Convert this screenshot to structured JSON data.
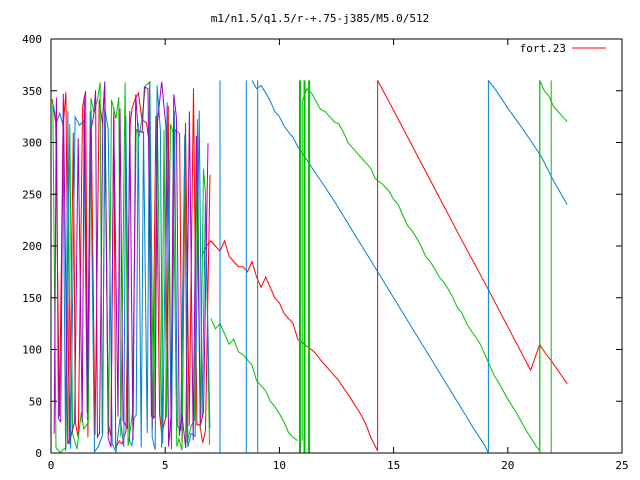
{
  "chart_data": {
    "type": "line",
    "title": "m1/n1.5/q1.5/r-+.75-j385/M5.0/512",
    "xlabel": "",
    "ylabel": "",
    "xlim": [
      0,
      25
    ],
    "ylim": [
      0,
      400
    ],
    "x_ticks": [
      "0",
      "5",
      "10",
      "15",
      "20",
      "25"
    ],
    "y_ticks": [
      "0",
      "50",
      "100",
      "150",
      "200",
      "250",
      "300",
      "350",
      "400"
    ],
    "grid": false,
    "legend": {
      "placement": "top-right",
      "entries": [
        {
          "label": "fort.23",
          "color": "#ff0000"
        }
      ]
    },
    "series": [
      {
        "name": "fort.23",
        "color": "#ff0000",
        "points": [
          [
            6.6,
            190
          ],
          [
            6.8,
            200
          ],
          [
            7.0,
            205
          ],
          [
            7.2,
            200
          ],
          [
            7.4,
            195
          ],
          [
            7.6,
            205
          ],
          [
            7.8,
            190
          ],
          [
            8.0,
            185
          ],
          [
            8.2,
            180
          ],
          [
            8.4,
            180
          ],
          [
            8.6,
            175
          ],
          [
            8.8,
            185
          ],
          [
            9.0,
            170
          ],
          [
            9.2,
            160
          ],
          [
            9.4,
            170
          ],
          [
            9.6,
            160
          ],
          [
            9.8,
            150
          ],
          [
            10.0,
            145
          ],
          [
            10.2,
            135
          ],
          [
            10.4,
            130
          ],
          [
            10.6,
            125
          ],
          [
            10.8,
            110
          ],
          [
            11.0,
            107
          ],
          [
            11.2,
            103
          ],
          [
            11.4,
            100
          ],
          [
            11.6,
            96
          ],
          [
            11.8,
            90
          ],
          [
            12.0,
            85
          ],
          [
            12.2,
            80
          ],
          [
            12.4,
            75
          ],
          [
            12.6,
            70
          ],
          [
            12.8,
            63
          ],
          [
            13.0,
            57
          ],
          [
            13.2,
            50
          ],
          [
            13.4,
            43
          ],
          [
            13.6,
            36
          ],
          [
            13.8,
            27
          ],
          [
            14.0,
            15
          ],
          [
            14.3,
            2
          ],
          [
            14.3,
            360
          ],
          [
            15.0,
            331
          ],
          [
            16.0,
            289
          ],
          [
            17.0,
            247
          ],
          [
            18.0,
            205
          ],
          [
            19.0,
            164
          ],
          [
            20.0,
            122
          ],
          [
            21.0,
            80
          ],
          [
            21.4,
            105
          ],
          [
            21.5,
            101
          ],
          [
            22.0,
            86
          ],
          [
            22.6,
            67
          ]
        ]
      },
      {
        "name": "",
        "color": "#0080d0",
        "points": [
          [
            8.8,
            360
          ],
          [
            9.0,
            352
          ],
          [
            9.2,
            355
          ],
          [
            9.4,
            348
          ],
          [
            9.6,
            340
          ],
          [
            9.8,
            330
          ],
          [
            10.0,
            325
          ],
          [
            10.2,
            316
          ],
          [
            10.4,
            310
          ],
          [
            10.6,
            305
          ],
          [
            10.8,
            296
          ],
          [
            11.0,
            290
          ],
          [
            11.5,
            273
          ],
          [
            12.0,
            257
          ],
          [
            12.5,
            240
          ],
          [
            13.0,
            222
          ],
          [
            13.5,
            204
          ],
          [
            14.0,
            186
          ],
          [
            14.5,
            168
          ],
          [
            15.0,
            150
          ],
          [
            15.5,
            132
          ],
          [
            16.0,
            114
          ],
          [
            16.5,
            96
          ],
          [
            17.0,
            78
          ],
          [
            17.5,
            60
          ],
          [
            18.0,
            42
          ],
          [
            18.5,
            24
          ],
          [
            19.0,
            7
          ],
          [
            19.15,
            0
          ],
          [
            19.15,
            360
          ],
          [
            19.5,
            350
          ],
          [
            20.0,
            333
          ],
          [
            20.5,
            318
          ],
          [
            21.0,
            302
          ],
          [
            21.5,
            285
          ],
          [
            22.0,
            263
          ],
          [
            22.6,
            240
          ]
        ]
      },
      {
        "name": "",
        "color": "#00c000",
        "points": [
          [
            7.0,
            130
          ],
          [
            7.2,
            120
          ],
          [
            7.4,
            125
          ],
          [
            7.6,
            115
          ],
          [
            7.8,
            105
          ],
          [
            8.0,
            110
          ],
          [
            8.2,
            98
          ],
          [
            8.4,
            95
          ],
          [
            8.6,
            90
          ],
          [
            8.8,
            85
          ],
          [
            9.0,
            70
          ],
          [
            9.2,
            65
          ],
          [
            9.4,
            60
          ],
          [
            9.6,
            50
          ],
          [
            9.8,
            45
          ],
          [
            10.0,
            38
          ],
          [
            10.2,
            30
          ],
          [
            10.4,
            20
          ],
          [
            10.6,
            15
          ],
          [
            10.8,
            12
          ],
          [
            11.0,
            340
          ],
          [
            11.2,
            352
          ],
          [
            11.4,
            348
          ],
          [
            11.6,
            340
          ],
          [
            11.8,
            332
          ],
          [
            12.0,
            330
          ],
          [
            12.2,
            325
          ],
          [
            12.4,
            320
          ],
          [
            12.6,
            318
          ],
          [
            12.8,
            310
          ],
          [
            13.0,
            300
          ],
          [
            13.2,
            295
          ],
          [
            13.4,
            290
          ],
          [
            13.6,
            285
          ],
          [
            13.8,
            280
          ],
          [
            14.0,
            275
          ],
          [
            14.2,
            265
          ],
          [
            14.5,
            260
          ],
          [
            14.8,
            253
          ],
          [
            15.0,
            245
          ],
          [
            15.2,
            240
          ],
          [
            15.4,
            230
          ],
          [
            15.6,
            220
          ],
          [
            15.8,
            215
          ],
          [
            16.0,
            208
          ],
          [
            16.2,
            200
          ],
          [
            16.4,
            190
          ],
          [
            16.6,
            185
          ],
          [
            16.8,
            178
          ],
          [
            17.0,
            170
          ],
          [
            17.2,
            165
          ],
          [
            17.4,
            158
          ],
          [
            17.6,
            150
          ],
          [
            17.8,
            140
          ],
          [
            18.0,
            135
          ],
          [
            18.2,
            125
          ],
          [
            18.4,
            118
          ],
          [
            18.6,
            112
          ],
          [
            18.8,
            105
          ],
          [
            19.0,
            95
          ],
          [
            19.2,
            85
          ],
          [
            19.4,
            75
          ],
          [
            19.6,
            68
          ],
          [
            19.8,
            60
          ],
          [
            20.0,
            52
          ],
          [
            20.2,
            45
          ],
          [
            20.4,
            38
          ],
          [
            20.6,
            30
          ],
          [
            20.8,
            22
          ],
          [
            21.0,
            15
          ],
          [
            21.2,
            8
          ],
          [
            21.4,
            2
          ],
          [
            21.4,
            360
          ],
          [
            21.6,
            350
          ],
          [
            21.8,
            345
          ],
          [
            22.0,
            335
          ],
          [
            22.2,
            330
          ],
          [
            22.4,
            325
          ],
          [
            22.6,
            320
          ]
        ]
      },
      {
        "name": "",
        "color": "#a000c0",
        "points": []
      }
    ]
  }
}
